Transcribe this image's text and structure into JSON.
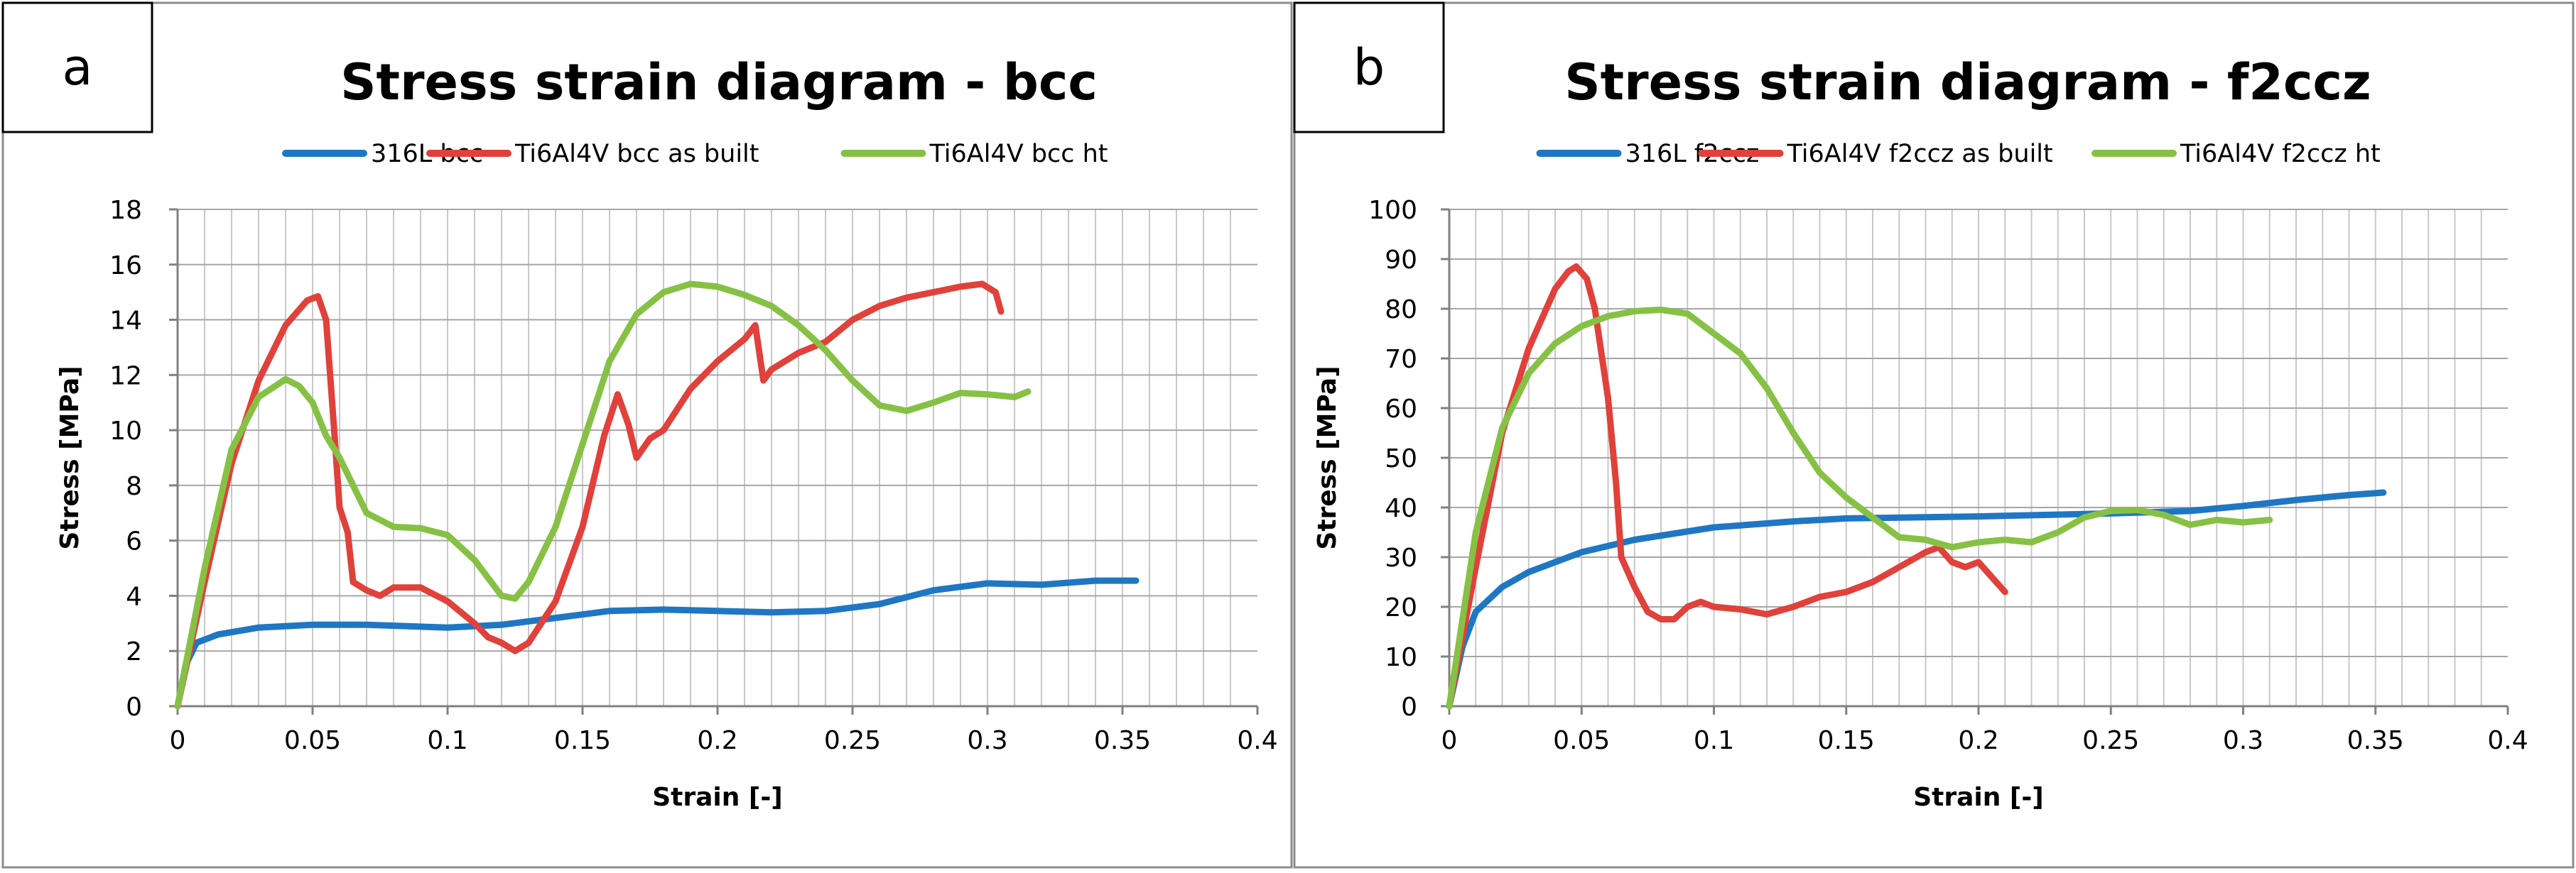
{
  "chart_data": [
    {
      "type": "line",
      "panel_label": "a",
      "title": "Stress strain diagram - bcc",
      "xlabel": "Strain [-]",
      "ylabel": "Stress [MPa]",
      "xlim": [
        0,
        0.4
      ],
      "ylim": [
        0,
        18
      ],
      "grid": true,
      "legend_position": "top-center",
      "x_ticks": [
        0,
        0.05,
        0.1,
        0.15,
        0.2,
        0.25,
        0.3,
        0.35,
        0.4
      ],
      "x_tick_labels": [
        "0",
        "0.05",
        "0.1",
        "0.15",
        "0.2",
        "0.25",
        "0.3",
        "0.35",
        "0.4"
      ],
      "y_ticks": [
        0,
        2,
        4,
        6,
        8,
        10,
        12,
        14,
        16,
        18
      ],
      "y_tick_labels": [
        "0",
        "2",
        "4",
        "6",
        "8",
        "10",
        "12",
        "14",
        "16",
        "18"
      ],
      "series": [
        {
          "name": "316L bcc",
          "color": "#1f77c4",
          "points": [
            [
              0,
              0
            ],
            [
              0.003,
              1.5
            ],
            [
              0.007,
              2.3
            ],
            [
              0.015,
              2.6
            ],
            [
              0.03,
              2.85
            ],
            [
              0.05,
              2.95
            ],
            [
              0.07,
              2.95
            ],
            [
              0.1,
              2.85
            ],
            [
              0.12,
              2.95
            ],
            [
              0.14,
              3.2
            ],
            [
              0.16,
              3.45
            ],
            [
              0.18,
              3.5
            ],
            [
              0.2,
              3.45
            ],
            [
              0.22,
              3.4
            ],
            [
              0.24,
              3.45
            ],
            [
              0.26,
              3.7
            ],
            [
              0.28,
              4.2
            ],
            [
              0.3,
              4.45
            ],
            [
              0.32,
              4.4
            ],
            [
              0.34,
              4.55
            ],
            [
              0.355,
              4.55
            ]
          ]
        },
        {
          "name": "Ti6Al4V bcc as built",
          "color": "#e0413a",
          "points": [
            [
              0,
              0
            ],
            [
              0.01,
              4.5
            ],
            [
              0.02,
              8.8
            ],
            [
              0.03,
              11.8
            ],
            [
              0.04,
              13.8
            ],
            [
              0.048,
              14.7
            ],
            [
              0.052,
              14.85
            ],
            [
              0.055,
              14
            ],
            [
              0.058,
              10
            ],
            [
              0.06,
              7.2
            ],
            [
              0.063,
              6.3
            ],
            [
              0.065,
              4.5
            ],
            [
              0.07,
              4.2
            ],
            [
              0.075,
              4.0
            ],
            [
              0.08,
              4.3
            ],
            [
              0.09,
              4.3
            ],
            [
              0.1,
              3.8
            ],
            [
              0.11,
              3.0
            ],
            [
              0.115,
              2.5
            ],
            [
              0.12,
              2.3
            ],
            [
              0.125,
              2.0
            ],
            [
              0.13,
              2.3
            ],
            [
              0.14,
              3.8
            ],
            [
              0.15,
              6.5
            ],
            [
              0.158,
              9.8
            ],
            [
              0.163,
              11.3
            ],
            [
              0.167,
              10.2
            ],
            [
              0.17,
              9.0
            ],
            [
              0.175,
              9.7
            ],
            [
              0.18,
              10.0
            ],
            [
              0.19,
              11.5
            ],
            [
              0.2,
              12.5
            ],
            [
              0.21,
              13.3
            ],
            [
              0.214,
              13.8
            ],
            [
              0.217,
              11.8
            ],
            [
              0.22,
              12.2
            ],
            [
              0.23,
              12.8
            ],
            [
              0.24,
              13.2
            ],
            [
              0.25,
              14.0
            ],
            [
              0.26,
              14.5
            ],
            [
              0.27,
              14.8
            ],
            [
              0.28,
              15.0
            ],
            [
              0.29,
              15.2
            ],
            [
              0.298,
              15.3
            ],
            [
              0.303,
              15.0
            ],
            [
              0.305,
              14.3
            ]
          ]
        },
        {
          "name": "Ti6Al4V bcc ht",
          "color": "#86c145",
          "points": [
            [
              0,
              0
            ],
            [
              0.01,
              5
            ],
            [
              0.02,
              9.3
            ],
            [
              0.03,
              11.2
            ],
            [
              0.04,
              11.85
            ],
            [
              0.045,
              11.6
            ],
            [
              0.05,
              11.0
            ],
            [
              0.055,
              9.8
            ],
            [
              0.06,
              9.0
            ],
            [
              0.065,
              8.0
            ],
            [
              0.07,
              7.0
            ],
            [
              0.08,
              6.5
            ],
            [
              0.09,
              6.45
            ],
            [
              0.1,
              6.2
            ],
            [
              0.11,
              5.3
            ],
            [
              0.12,
              4.0
            ],
            [
              0.125,
              3.9
            ],
            [
              0.13,
              4.5
            ],
            [
              0.14,
              6.5
            ],
            [
              0.15,
              9.5
            ],
            [
              0.16,
              12.5
            ],
            [
              0.17,
              14.2
            ],
            [
              0.18,
              15.0
            ],
            [
              0.19,
              15.3
            ],
            [
              0.2,
              15.2
            ],
            [
              0.21,
              14.9
            ],
            [
              0.22,
              14.5
            ],
            [
              0.23,
              13.8
            ],
            [
              0.24,
              12.9
            ],
            [
              0.25,
              11.8
            ],
            [
              0.26,
              10.9
            ],
            [
              0.27,
              10.7
            ],
            [
              0.28,
              11.0
            ],
            [
              0.29,
              11.35
            ],
            [
              0.3,
              11.3
            ],
            [
              0.31,
              11.2
            ],
            [
              0.315,
              11.4
            ]
          ]
        }
      ]
    },
    {
      "type": "line",
      "panel_label": "b",
      "title": "Stress strain diagram - f2ccz",
      "xlabel": "Strain [-]",
      "ylabel": "Stress [MPa]",
      "xlim": [
        0,
        0.4
      ],
      "ylim": [
        0,
        100
      ],
      "grid": true,
      "legend_position": "top-center",
      "x_ticks": [
        0,
        0.05,
        0.1,
        0.15,
        0.2,
        0.25,
        0.3,
        0.35,
        0.4
      ],
      "x_tick_labels": [
        "0",
        "0.05",
        "0.1",
        "0.15",
        "0.2",
        "0.25",
        "0.3",
        "0.35",
        "0.4"
      ],
      "y_ticks": [
        0,
        10,
        20,
        30,
        40,
        50,
        60,
        70,
        80,
        90,
        100
      ],
      "y_tick_labels": [
        "0",
        "10",
        "20",
        "30",
        "40",
        "50",
        "60",
        "70",
        "80",
        "90",
        "100"
      ],
      "series": [
        {
          "name": "316L f2ccz",
          "color": "#1f77c4",
          "points": [
            [
              0,
              0
            ],
            [
              0.005,
              12
            ],
            [
              0.01,
              19
            ],
            [
              0.02,
              24
            ],
            [
              0.03,
              27
            ],
            [
              0.05,
              31
            ],
            [
              0.07,
              33.5
            ],
            [
              0.1,
              36
            ],
            [
              0.13,
              37.2
            ],
            [
              0.15,
              37.8
            ],
            [
              0.2,
              38.2
            ],
            [
              0.25,
              38.8
            ],
            [
              0.28,
              39.3
            ],
            [
              0.3,
              40.3
            ],
            [
              0.32,
              41.5
            ],
            [
              0.34,
              42.5
            ],
            [
              0.353,
              43
            ]
          ]
        },
        {
          "name": "Ti6Al4V f2ccz as built",
          "color": "#e0413a",
          "points": [
            [
              0,
              0
            ],
            [
              0.01,
              28
            ],
            [
              0.02,
              55
            ],
            [
              0.03,
              72
            ],
            [
              0.04,
              84
            ],
            [
              0.045,
              87.5
            ],
            [
              0.048,
              88.5
            ],
            [
              0.052,
              86
            ],
            [
              0.055,
              80
            ],
            [
              0.06,
              62
            ],
            [
              0.063,
              45
            ],
            [
              0.065,
              30
            ],
            [
              0.07,
              24
            ],
            [
              0.075,
              19
            ],
            [
              0.08,
              17.5
            ],
            [
              0.085,
              17.5
            ],
            [
              0.09,
              20
            ],
            [
              0.095,
              21
            ],
            [
              0.1,
              20
            ],
            [
              0.11,
              19.5
            ],
            [
              0.12,
              18.5
            ],
            [
              0.13,
              20
            ],
            [
              0.14,
              22
            ],
            [
              0.15,
              23
            ],
            [
              0.16,
              25
            ],
            [
              0.17,
              28
            ],
            [
              0.18,
              31
            ],
            [
              0.185,
              32
            ],
            [
              0.19,
              29
            ],
            [
              0.195,
              28
            ],
            [
              0.2,
              29
            ],
            [
              0.205,
              26
            ],
            [
              0.21,
              23
            ]
          ]
        },
        {
          "name": "Ti6Al4V f2ccz ht",
          "color": "#86c145",
          "points": [
            [
              0,
              0
            ],
            [
              0.01,
              35
            ],
            [
              0.02,
              56
            ],
            [
              0.03,
              67
            ],
            [
              0.04,
              73
            ],
            [
              0.05,
              76.5
            ],
            [
              0.06,
              78.5
            ],
            [
              0.07,
              79.5
            ],
            [
              0.08,
              79.8
            ],
            [
              0.09,
              79
            ],
            [
              0.1,
              75
            ],
            [
              0.11,
              71
            ],
            [
              0.12,
              64
            ],
            [
              0.13,
              55
            ],
            [
              0.14,
              47
            ],
            [
              0.15,
              42
            ],
            [
              0.16,
              38
            ],
            [
              0.17,
              34
            ],
            [
              0.18,
              33.5
            ],
            [
              0.19,
              32
            ],
            [
              0.2,
              33
            ],
            [
              0.21,
              33.5
            ],
            [
              0.22,
              33
            ],
            [
              0.23,
              35
            ],
            [
              0.24,
              38
            ],
            [
              0.25,
              39.3
            ],
            [
              0.26,
              39.5
            ],
            [
              0.27,
              38.5
            ],
            [
              0.28,
              36.5
            ],
            [
              0.29,
              37.5
            ],
            [
              0.3,
              37
            ],
            [
              0.31,
              37.5
            ]
          ]
        }
      ]
    }
  ]
}
